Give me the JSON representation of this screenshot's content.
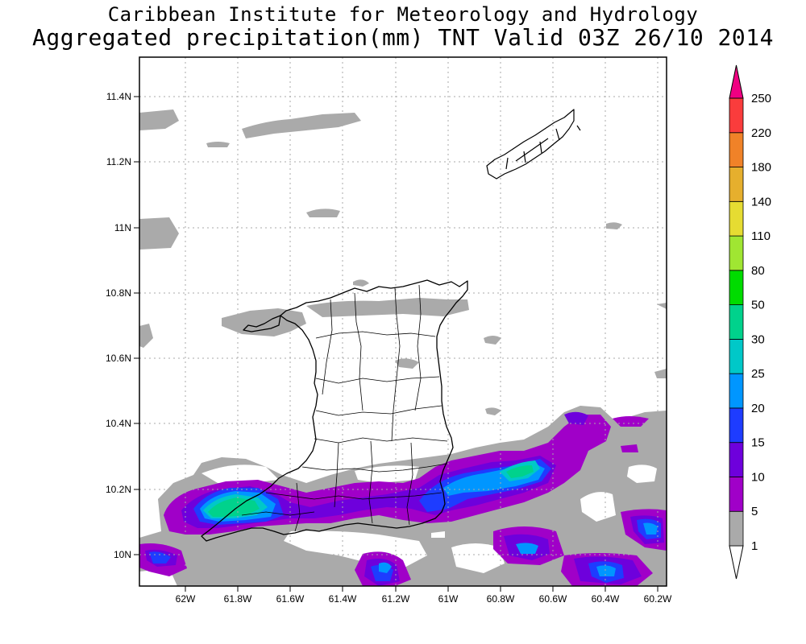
{
  "title": {
    "line1": "Caribbean Institute for Meteorology and Hydrology",
    "line2": "Aggregated precipitation(mm) TNT Valid 03Z 26/10 2014"
  },
  "axes": {
    "lat_ticks": [
      "11.4N",
      "11.2N",
      "11N",
      "10.8N",
      "10.6N",
      "10.4N",
      "10.2N",
      "10N"
    ],
    "lon_ticks": [
      "62W",
      "61.8W",
      "61.6W",
      "61.4W",
      "61.2W",
      "61W",
      "60.8W",
      "60.6W",
      "60.4W",
      "60.2W"
    ],
    "grid": "dotted"
  },
  "colorbar": {
    "levels": [
      "1",
      "5",
      "10",
      "15",
      "20",
      "25",
      "30",
      "50",
      "80",
      "110",
      "140",
      "180",
      "220",
      "250"
    ],
    "colors": [
      "#ffffff",
      "#aaaaaa",
      "#a000c8",
      "#6e00dc",
      "#1e3cff",
      "#0096ff",
      "#00c8c8",
      "#00d28c",
      "#00dc00",
      "#a0e632",
      "#e6dc32",
      "#e6af2d",
      "#f08228",
      "#fa3c3c",
      "#f00082"
    ]
  },
  "map_features": [
    "Trinidad",
    "Tobago"
  ]
}
